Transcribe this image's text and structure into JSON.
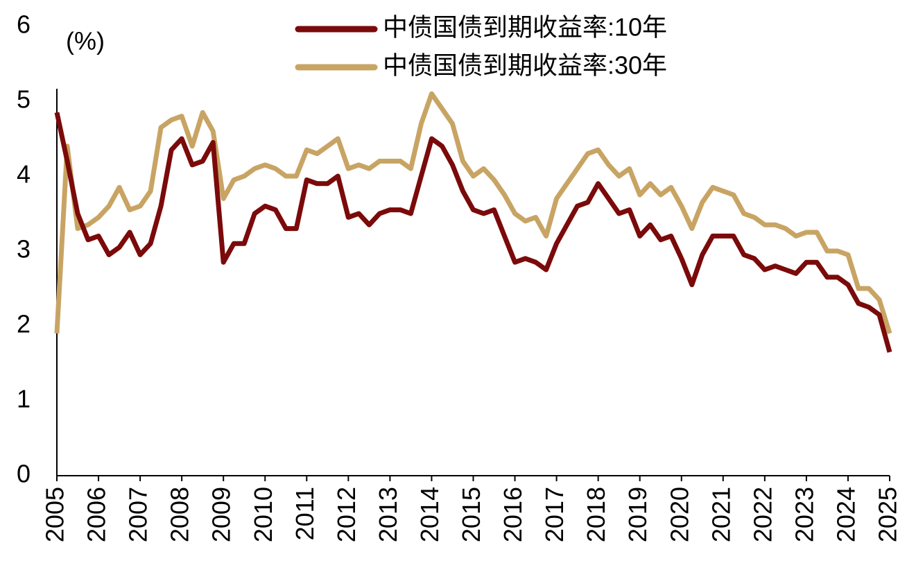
{
  "chart_data": {
    "type": "line",
    "y_label": "(%)",
    "x": [
      2005,
      2005.25,
      2005.5,
      2005.75,
      2006,
      2006.25,
      2006.5,
      2006.75,
      2007,
      2007.25,
      2007.5,
      2007.75,
      2008,
      2008.25,
      2008.5,
      2008.75,
      2009,
      2009.25,
      2009.5,
      2009.75,
      2010,
      2010.25,
      2010.5,
      2010.75,
      2011,
      2011.25,
      2011.5,
      2011.75,
      2012,
      2012.25,
      2012.5,
      2012.75,
      2013,
      2013.25,
      2013.5,
      2013.75,
      2014,
      2014.25,
      2014.5,
      2014.75,
      2015,
      2015.25,
      2015.5,
      2015.75,
      2016,
      2016.25,
      2016.5,
      2016.75,
      2017,
      2017.25,
      2017.5,
      2017.75,
      2018,
      2018.25,
      2018.5,
      2018.75,
      2019,
      2019.25,
      2019.5,
      2019.75,
      2020,
      2020.25,
      2020.5,
      2020.75,
      2021,
      2021.25,
      2021.5,
      2021.75,
      2022,
      2022.25,
      2022.5,
      2022.75,
      2023,
      2023.25,
      2023.5,
      2023.75,
      2024,
      2024.25,
      2024.5,
      2024.75,
      2025
    ],
    "series": [
      {
        "name": "中债国债到期收益率:10年",
        "color": "#7b0a0a",
        "values": [
          4.85,
          4.2,
          3.5,
          3.15,
          3.2,
          2.95,
          3.05,
          3.25,
          2.95,
          3.1,
          3.6,
          4.35,
          4.5,
          4.15,
          4.2,
          4.45,
          2.85,
          3.1,
          3.1,
          3.5,
          3.6,
          3.55,
          3.3,
          3.3,
          3.95,
          3.9,
          3.9,
          4.0,
          3.45,
          3.5,
          3.35,
          3.5,
          3.55,
          3.55,
          3.5,
          4.0,
          4.5,
          4.4,
          4.15,
          3.8,
          3.55,
          3.5,
          3.55,
          3.2,
          2.85,
          2.9,
          2.85,
          2.75,
          3.1,
          3.35,
          3.6,
          3.65,
          3.9,
          3.7,
          3.5,
          3.55,
          3.2,
          3.35,
          3.15,
          3.2,
          2.9,
          2.55,
          2.95,
          3.2,
          3.2,
          3.2,
          2.95,
          2.9,
          2.75,
          2.8,
          2.75,
          2.7,
          2.85,
          2.85,
          2.65,
          2.65,
          2.55,
          2.3,
          2.25,
          2.15,
          1.65
        ]
      },
      {
        "name": "中债国债到期收益率:30年",
        "color": "#c8a464",
        "values": [
          1.9,
          4.4,
          3.3,
          3.35,
          3.45,
          3.6,
          3.85,
          3.55,
          3.6,
          3.8,
          4.65,
          4.75,
          4.8,
          4.4,
          4.85,
          4.6,
          3.7,
          3.95,
          4.0,
          4.1,
          4.15,
          4.1,
          4.0,
          4.0,
          4.35,
          4.3,
          4.4,
          4.5,
          4.1,
          4.15,
          4.1,
          4.2,
          4.2,
          4.2,
          4.1,
          4.7,
          5.1,
          4.9,
          4.7,
          4.2,
          4.0,
          4.1,
          3.95,
          3.75,
          3.5,
          3.4,
          3.45,
          3.2,
          3.7,
          3.9,
          4.1,
          4.3,
          4.35,
          4.15,
          4.0,
          4.1,
          3.75,
          3.9,
          3.75,
          3.85,
          3.6,
          3.3,
          3.65,
          3.85,
          3.8,
          3.75,
          3.5,
          3.45,
          3.35,
          3.35,
          3.3,
          3.2,
          3.25,
          3.25,
          3.0,
          3.0,
          2.95,
          2.5,
          2.5,
          2.35,
          1.9
        ]
      }
    ],
    "xlim": [
      2005,
      2025
    ],
    "xticks": [
      2005,
      2006,
      2007,
      2008,
      2009,
      2010,
      2011,
      2012,
      2013,
      2014,
      2015,
      2016,
      2017,
      2018,
      2019,
      2020,
      2021,
      2022,
      2023,
      2024,
      2025
    ],
    "ylim": [
      0,
      6
    ],
    "yticks": [
      0,
      1,
      2,
      3,
      4,
      5,
      6
    ],
    "grid": false,
    "legend": "top"
  }
}
